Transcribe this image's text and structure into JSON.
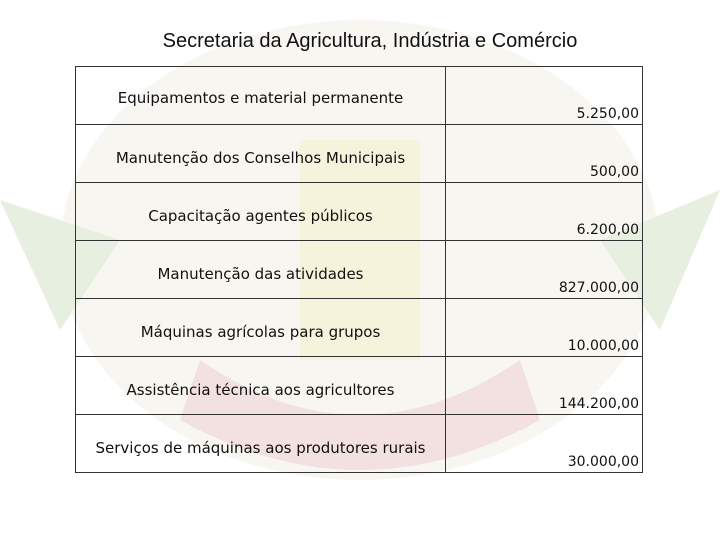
{
  "header": {
    "title": "Secretaria da Agricultura, Indústria e Comércio"
  },
  "table": {
    "rows": [
      [
        "Equipamentos e material permanente",
        "5.250,00"
      ],
      [
        "Manutenção dos Conselhos Municipais",
        "500,00"
      ],
      [
        "Capacitação agentes públicos",
        "6.200,00"
      ],
      [
        "Manutenção das atividades",
        "827.000,00"
      ],
      [
        "Máquinas agrícolas para grupos",
        "10.000,00"
      ],
      [
        "Assistência técnica aos agricultores",
        "144.200,00"
      ],
      [
        "Serviços de máquinas aos produtores rurais",
        "30.000,00"
      ]
    ]
  }
}
